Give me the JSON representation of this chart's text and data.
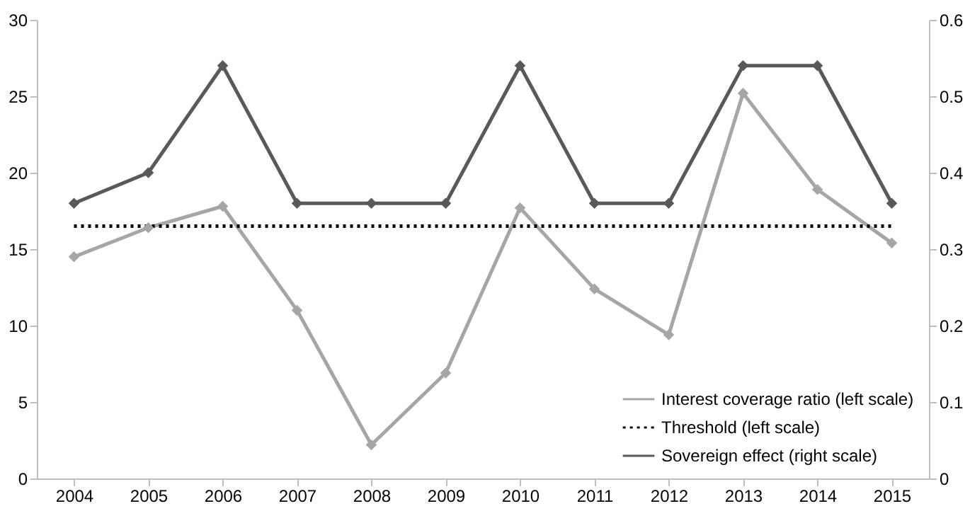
{
  "chart_data": {
    "type": "line",
    "categories": [
      "2004",
      "2005",
      "2006",
      "2007",
      "2008",
      "2009",
      "2010",
      "2011",
      "2012",
      "2013",
      "2014",
      "2015"
    ],
    "series": [
      {
        "name": "Interest coverage ratio (left scale)",
        "color": "#a6a6a6",
        "marker": "diamond",
        "line_style": "solid",
        "values": [
          14.5,
          16.4,
          17.8,
          11.0,
          2.2,
          6.9,
          17.7,
          12.4,
          9.4,
          25.2,
          18.9,
          15.4
        ]
      },
      {
        "name": "Threshold (left scale)",
        "color": "#000000",
        "marker": "none",
        "line_style": "dotted",
        "values": [
          16.5,
          16.5,
          16.5,
          16.5,
          16.5,
          16.5,
          16.5,
          16.5,
          16.5,
          16.5,
          16.5,
          16.5
        ]
      },
      {
        "name": "Sovereign effect (right scale)",
        "color": "#595959",
        "marker": "diamond",
        "line_style": "solid",
        "axis": "y2",
        "values": [
          0.36,
          0.4,
          0.54,
          0.36,
          0.36,
          0.36,
          0.54,
          0.36,
          0.36,
          0.54,
          0.54,
          0.36
        ]
      }
    ],
    "ylim": [
      0,
      30
    ],
    "yticks": [
      0,
      5,
      10,
      15,
      20,
      25,
      30
    ],
    "y2lim": [
      0,
      0.6
    ],
    "y2ticks": [
      0,
      0.1,
      0.2,
      0.3,
      0.4,
      0.5,
      0.6
    ],
    "grid": false,
    "legend": "bottom right"
  }
}
